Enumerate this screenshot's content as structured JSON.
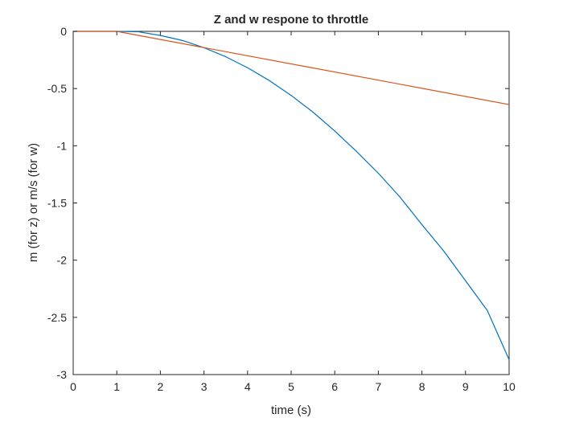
{
  "chart_data": {
    "type": "line",
    "title": "Z and w respone to throttle",
    "xlabel": "time (s)",
    "ylabel": "m (for z) or m/s (for w)",
    "xlim": [
      0,
      10
    ],
    "ylim": [
      -3,
      0
    ],
    "xticks": [
      0,
      1,
      2,
      3,
      4,
      5,
      6,
      7,
      8,
      9,
      10
    ],
    "yticks": [
      0,
      -0.5,
      -1,
      -1.5,
      -2,
      -2.5,
      -3
    ],
    "grid": false,
    "legend": "none",
    "series": [
      {
        "color": "#0072BD",
        "x": [
          0,
          1,
          1.5,
          2,
          2.5,
          3,
          3.5,
          4,
          4.5,
          5,
          5.5,
          6,
          6.5,
          7,
          7.5,
          8,
          8.5,
          9,
          9.5,
          10
        ],
        "y": [
          0,
          0,
          -0.004,
          -0.036,
          -0.079,
          -0.143,
          -0.222,
          -0.318,
          -0.43,
          -0.56,
          -0.706,
          -0.871,
          -1.05,
          -1.24,
          -1.45,
          -1.69,
          -1.92,
          -2.18,
          -2.44,
          -2.87
        ]
      },
      {
        "color": "#D95319",
        "x": [
          0,
          1,
          10
        ],
        "y": [
          0,
          0,
          -0.64
        ]
      }
    ]
  }
}
